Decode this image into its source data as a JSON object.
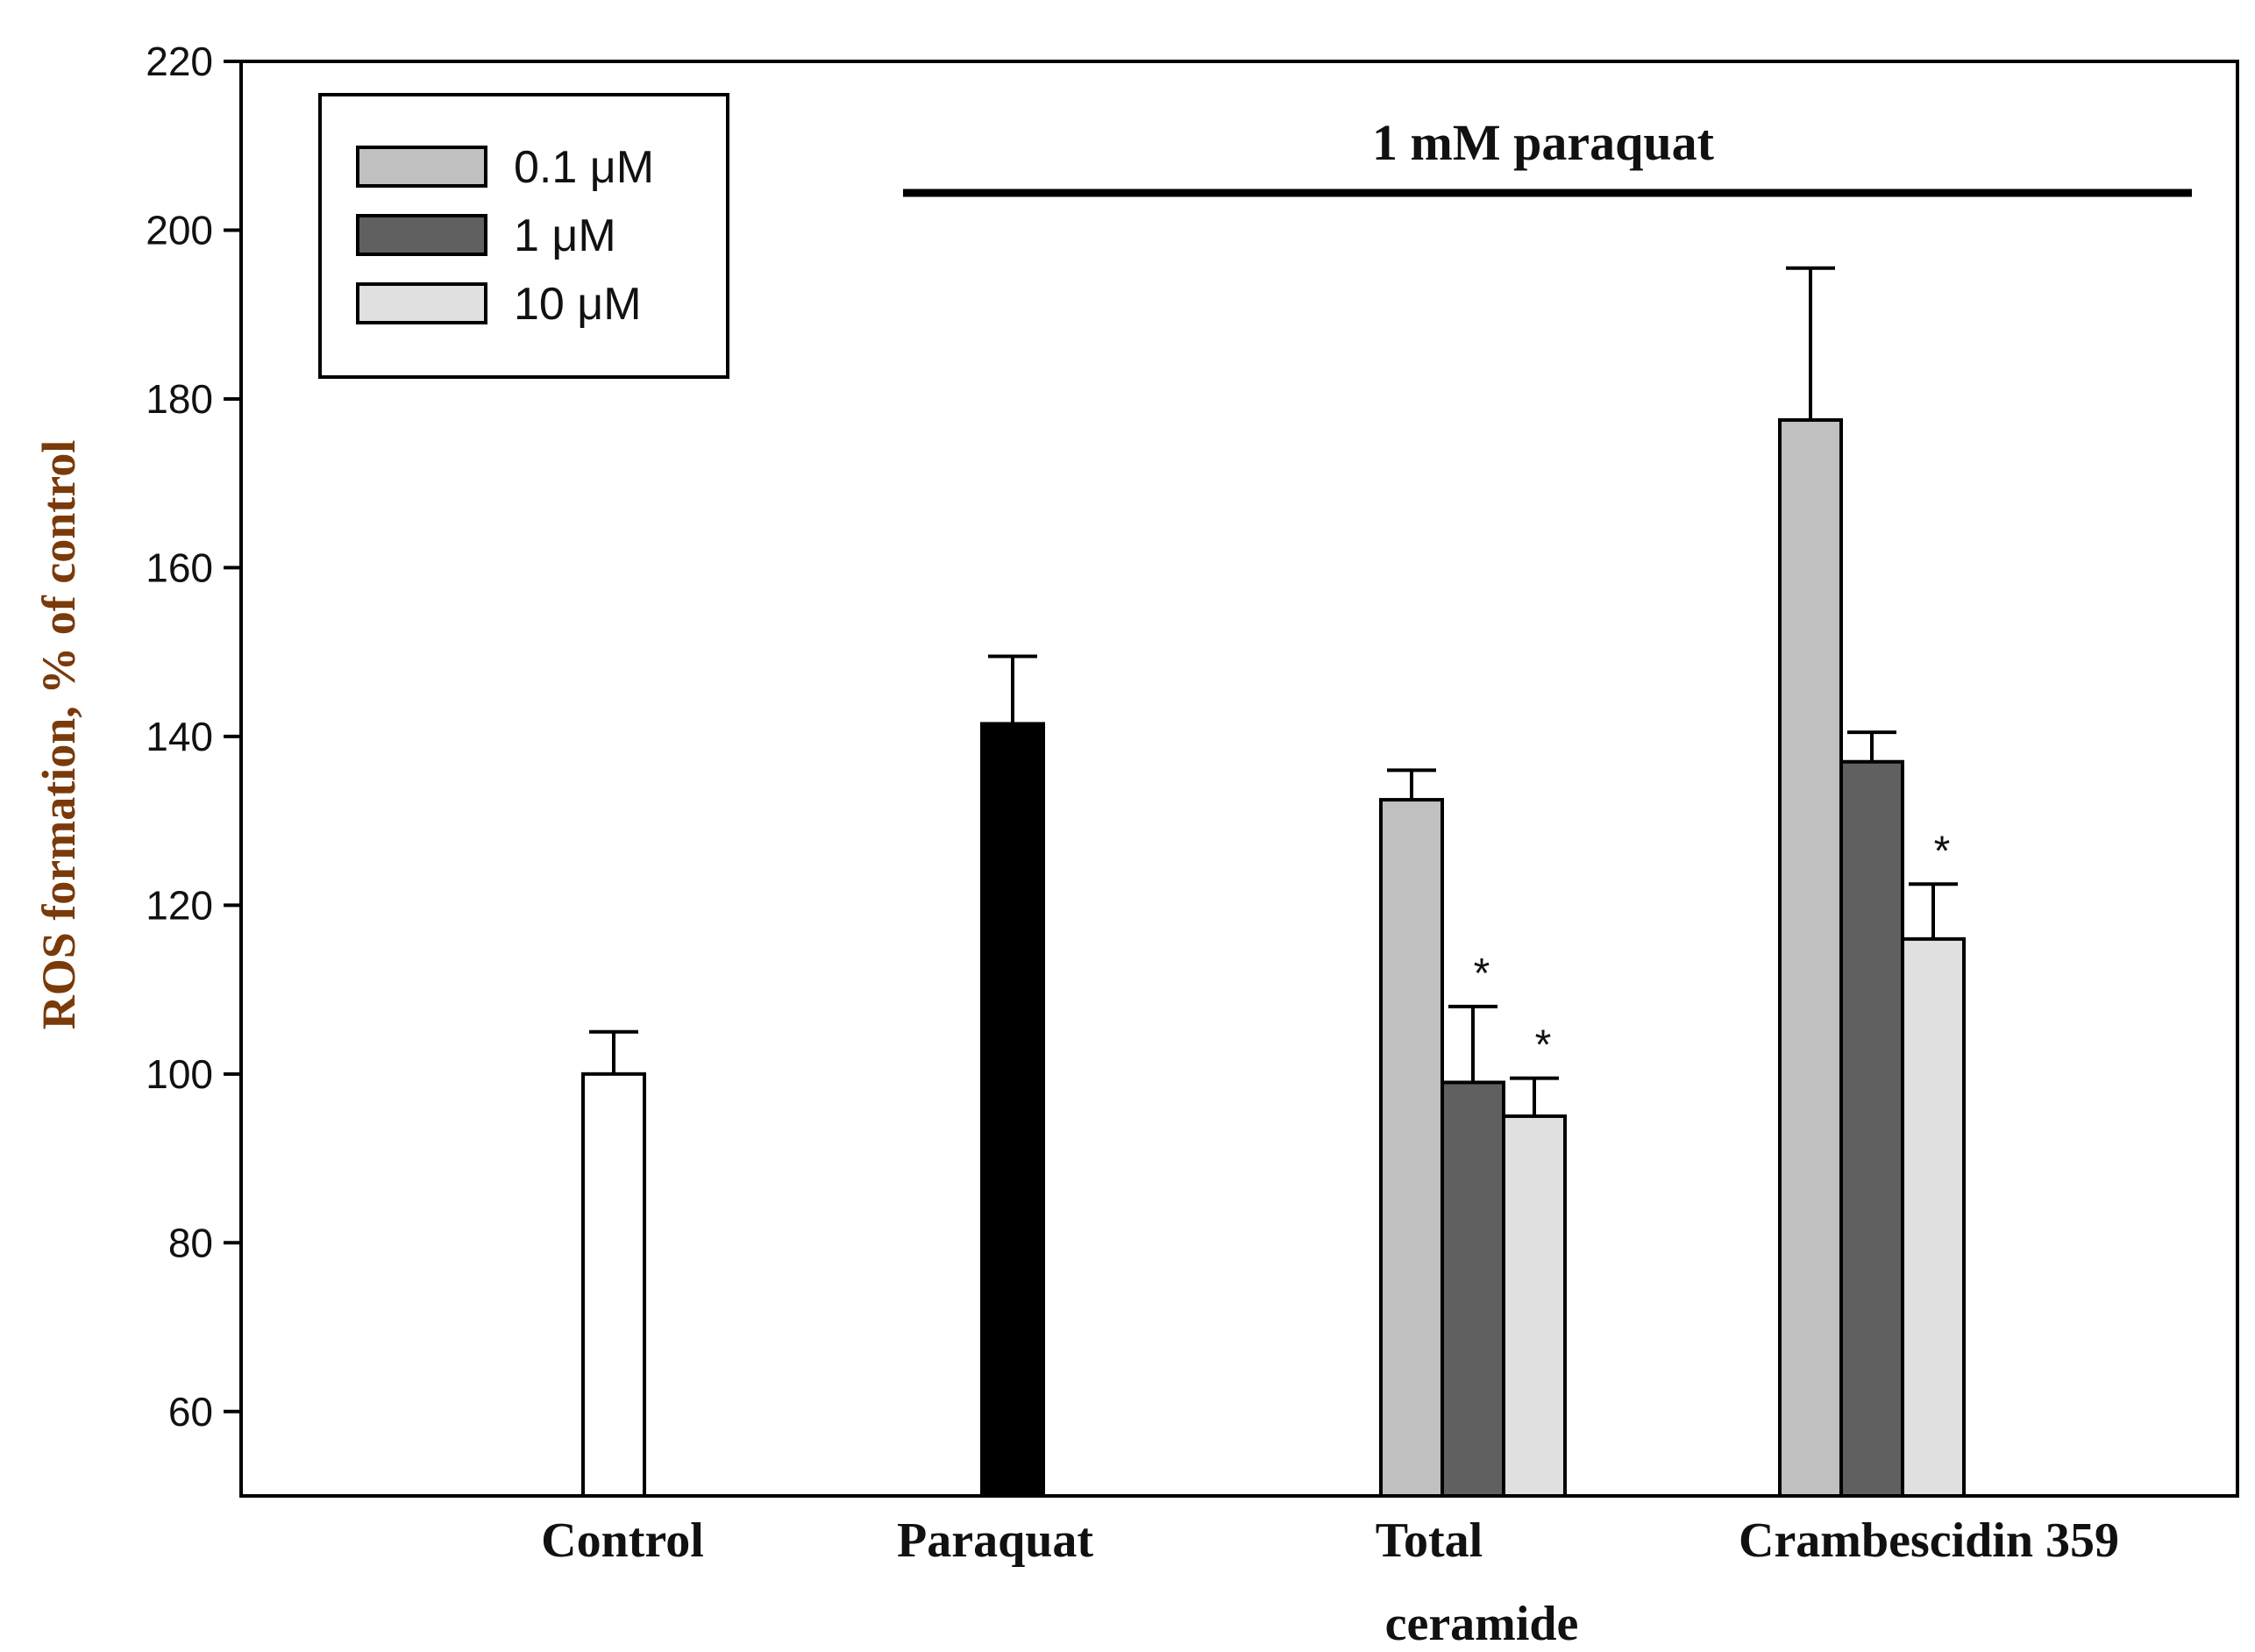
{
  "chart_data": {
    "type": "bar",
    "ylabel": "ROS formation, % of control",
    "xlabel": "",
    "ylim": [
      50,
      220
    ],
    "yticks": [
      60,
      80,
      100,
      120,
      140,
      160,
      180,
      200,
      220
    ],
    "bracket_label": "1 mM paraquat",
    "categories": [
      {
        "name": "control",
        "label_lines": [
          "Control"
        ]
      },
      {
        "name": "paraquat",
        "label_lines": [
          "Paraquat"
        ]
      },
      {
        "name": "total-ceramide",
        "label_lines": [
          "Total",
          "ceramide"
        ]
      },
      {
        "name": "crambescidin-359",
        "label_lines": [
          "Crambescidin 359"
        ]
      }
    ],
    "legend": [
      {
        "label": "0.1 μM",
        "color": "#c0c0c0"
      },
      {
        "label": "1 μM",
        "color": "#606060"
      },
      {
        "label": "10 μM",
        "color": "#e0e0e0"
      }
    ],
    "bars": [
      {
        "category": 0,
        "series": "control",
        "value": 100,
        "error": 5,
        "color": "#ffffff",
        "star": ""
      },
      {
        "category": 1,
        "series": "paraquat",
        "value": 141.5,
        "error": 8,
        "color": "#000000",
        "star": ""
      },
      {
        "category": 2,
        "series": "0.1 μM",
        "value": 132.5,
        "error": 3.5,
        "color": "#c0c0c0",
        "star": ""
      },
      {
        "category": 2,
        "series": "1 μM",
        "value": 99,
        "error": 9,
        "color": "#606060",
        "star": "*"
      },
      {
        "category": 2,
        "series": "10 μM",
        "value": 95,
        "error": 4.5,
        "color": "#e0e0e0",
        "star": "*"
      },
      {
        "category": 3,
        "series": "0.1 μM",
        "value": 177.5,
        "error": 18,
        "color": "#c0c0c0",
        "star": ""
      },
      {
        "category": 3,
        "series": "1 μM",
        "value": 137,
        "error": 3.5,
        "color": "#606060",
        "star": ""
      },
      {
        "category": 3,
        "series": "10 μM",
        "value": 116,
        "error": 6.5,
        "color": "#e0e0e0",
        "star": "*"
      }
    ]
  }
}
